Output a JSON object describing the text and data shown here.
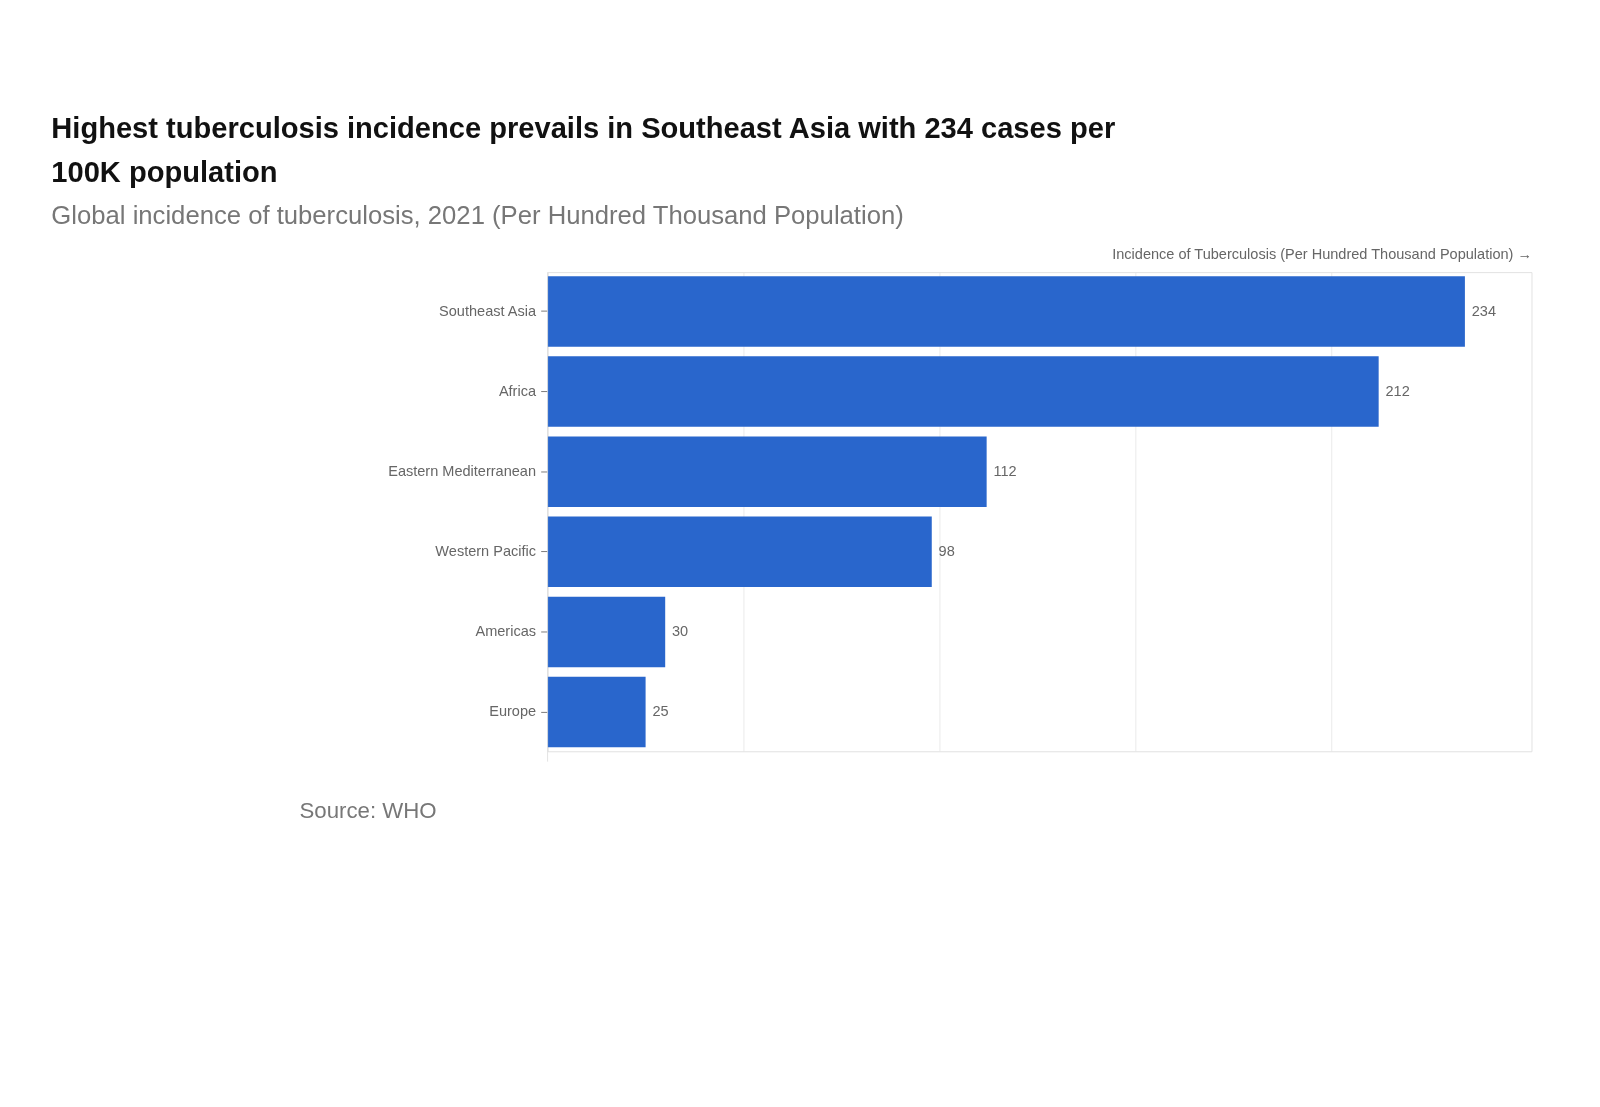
{
  "chart_data": {
    "type": "bar",
    "orientation": "horizontal",
    "title": "Highest tuberculosis incidence prevails in Southeast Asia with 234 cases per 100K population",
    "subtitle": "Global incidence of tuberculosis, 2021 (Per Hundred Thousand Population)",
    "xlabel": "Incidence of Tuberculosis (Per Hundred Thousand Population) →",
    "categories": [
      "Southeast Asia",
      "Africa",
      "Eastern Mediterranean",
      "Western Pacific",
      "Americas",
      "Europe"
    ],
    "values": [
      234,
      212,
      112,
      98,
      30,
      25
    ],
    "color": "#2966cc",
    "data_labels": true,
    "xlim": [
      0,
      251
    ],
    "xticks": [
      {
        "value": 0,
        "label": null
      },
      {
        "value": 50,
        "label": null
      },
      {
        "value": 100,
        "label": null
      },
      {
        "value": 150,
        "label": null
      },
      {
        "value": 200,
        "label": null
      }
    ],
    "tick_labels": "y",
    "grid": "x",
    "annotations": [
      "Source: WHO"
    ]
  }
}
